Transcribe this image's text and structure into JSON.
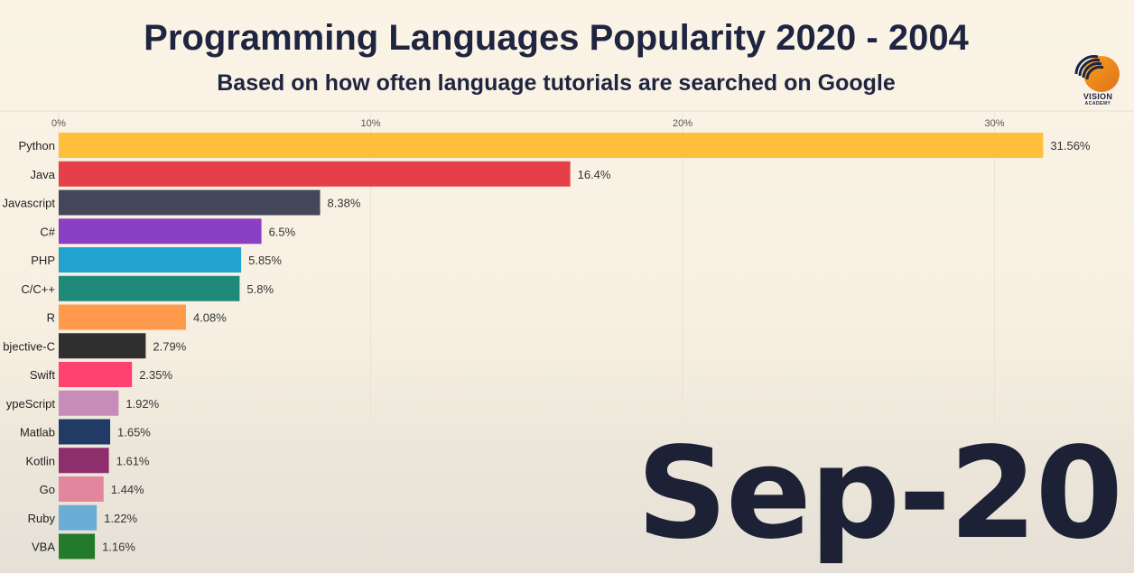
{
  "header": {
    "title": "Programming Languages Popularity 2020 - 2004",
    "subtitle": "Based on how often language tutorials are searched on Google"
  },
  "logo": {
    "line1": "VISION",
    "line2": "ACADEMY"
  },
  "date_label": "Sep-20",
  "chart_data": {
    "type": "bar",
    "orientation": "horizontal",
    "title": "Programming Languages Popularity 2020 - 2004",
    "subtitle": "Based on how often language tutorials are searched on Google",
    "xlim": [
      0,
      32
    ],
    "x_ticks": [
      0,
      10,
      20,
      30
    ],
    "x_tick_labels": [
      "0%",
      "10%",
      "20%",
      "30%"
    ],
    "grid": true,
    "categories": [
      "Python",
      "Java",
      "Javascript",
      "C#",
      "PHP",
      "C/C++",
      "R",
      "Objective-C",
      "Swift",
      "TypeScript",
      "Matlab",
      "Kotlin",
      "Go",
      "Ruby",
      "VBA"
    ],
    "category_labels": [
      "Python",
      "Java",
      "Javascript",
      "C#",
      "PHP",
      "C/C++",
      "R",
      "bjective-C",
      "Swift",
      "ypeScript",
      "Matlab",
      "Kotlin",
      "Go",
      "Ruby",
      "VBA"
    ],
    "values": [
      31.56,
      16.4,
      8.38,
      6.5,
      5.85,
      5.8,
      4.08,
      2.79,
      2.35,
      1.92,
      1.65,
      1.61,
      1.44,
      1.22,
      1.16
    ],
    "value_labels": [
      "31.56%",
      "16.4%",
      "8.38%",
      "6.5%",
      "5.85%",
      "5.8%",
      "4.08%",
      "2.79%",
      "2.35%",
      "1.92%",
      "1.65%",
      "1.61%",
      "1.44%",
      "1.22%",
      "1.16%"
    ],
    "colors": [
      "#ffbf3b",
      "#e5404a",
      "#44475a",
      "#8b3fc4",
      "#22a2cf",
      "#1f8a78",
      "#ff9a4d",
      "#2f2f2f",
      "#ff4270",
      "#c98bb9",
      "#223a66",
      "#8e2e6c",
      "#e1869c",
      "#6aaed6",
      "#237a2b"
    ]
  }
}
